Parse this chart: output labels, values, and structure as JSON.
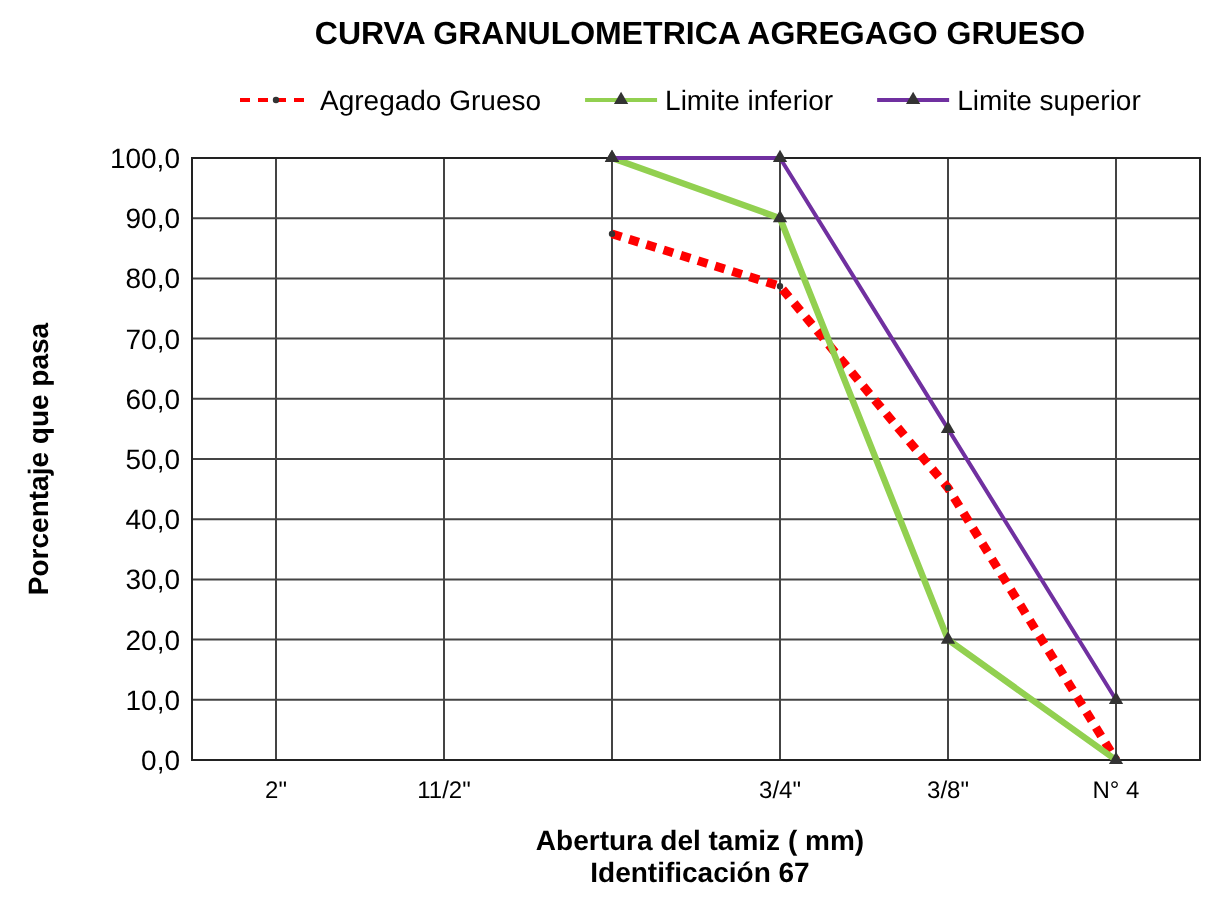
{
  "chart_data": {
    "type": "line",
    "title": "CURVA  GRANULOMETRICA AGREGAGO GRUESO",
    "xlabel": "Abertura del tamiz ( mm)\nIdentificación 67",
    "ylabel": "Porcentaje que pasa",
    "categories": [
      "2\"",
      "11/2\"",
      null,
      "3/4\"",
      "3/8\"",
      "N° 4"
    ],
    "ylim": [
      0,
      100
    ],
    "yticks": [
      {
        "value": 0,
        "label": "0,0"
      },
      {
        "value": 10,
        "label": "10,0"
      },
      {
        "value": 20,
        "label": "20,0"
      },
      {
        "value": 30,
        "label": "30,0"
      },
      {
        "value": 40,
        "label": "40,0"
      },
      {
        "value": 50,
        "label": "50,0"
      },
      {
        "value": 60,
        "label": "60,0"
      },
      {
        "value": 70,
        "label": "70,0"
      },
      {
        "value": 80,
        "label": "80,0"
      },
      {
        "value": 90,
        "label": "90,0"
      },
      {
        "value": 100,
        "label": "100,0"
      }
    ],
    "grid": true,
    "legend": "top",
    "series": [
      {
        "name": "Agregado Grueso",
        "color": "#ff0000",
        "values": [
          null,
          null,
          87.4,
          78.7,
          45.2,
          0
        ],
        "line_style": "dashed",
        "marker": "circle"
      },
      {
        "name": "Limite inferior",
        "color": "#92d050",
        "values": [
          null,
          null,
          100,
          90,
          20,
          0
        ],
        "line_style": "solid",
        "marker": "triangle"
      },
      {
        "name": "Limite superior",
        "color": "#7030a0",
        "values": [
          null,
          null,
          100,
          100,
          55,
          10
        ],
        "line_style": "solid",
        "marker": "triangle"
      }
    ]
  }
}
